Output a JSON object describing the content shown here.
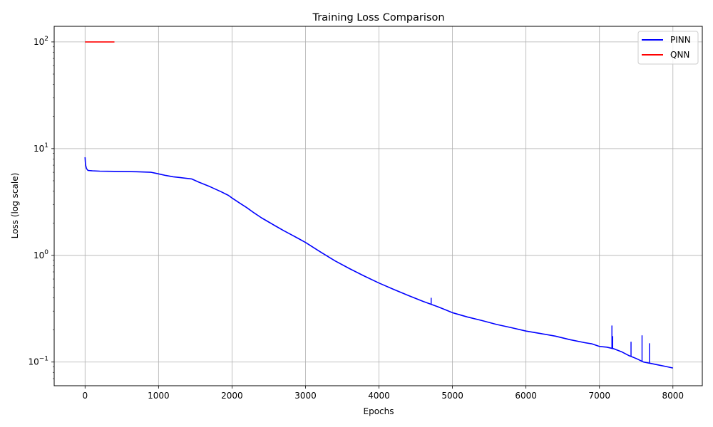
{
  "chart_data": {
    "type": "line",
    "title": "Training Loss Comparison",
    "xlabel": "Epochs",
    "ylabel": "Loss (log scale)",
    "xlim": [
      -420,
      8400
    ],
    "ylim": [
      0.06,
      140
    ],
    "yscale": "log",
    "grid": true,
    "legend_position": "top-right",
    "xticks": [
      0,
      1000,
      2000,
      3000,
      4000,
      5000,
      6000,
      7000,
      8000
    ],
    "yticks": [
      {
        "value": 0.1,
        "base": "10",
        "exp": "−1"
      },
      {
        "value": 1,
        "base": "10",
        "exp": "0"
      },
      {
        "value": 10,
        "base": "10",
        "exp": "1"
      },
      {
        "value": 100,
        "base": "10",
        "exp": "2"
      }
    ],
    "series": [
      {
        "name": "PINN",
        "color": "#0000ff",
        "x": [
          0,
          5,
          10,
          20,
          40,
          100,
          200,
          400,
          700,
          900,
          950,
          1000,
          1100,
          1200,
          1300,
          1450,
          1550,
          1700,
          1850,
          1950,
          2000,
          2100,
          2200,
          2300,
          2400,
          2500,
          2600,
          2700,
          2800,
          2900,
          3000,
          3200,
          3400,
          3600,
          3800,
          4000,
          4200,
          4400,
          4600,
          4700,
          4800,
          4900,
          5000,
          5200,
          5400,
          5600,
          5800,
          6000,
          6200,
          6400,
          6600,
          6800,
          6900,
          7000,
          7100,
          7200,
          7300,
          7400,
          7500,
          7600,
          7700,
          7800,
          7900,
          8000
        ],
        "y": [
          8.3,
          7.3,
          6.9,
          6.5,
          6.25,
          6.2,
          6.15,
          6.12,
          6.08,
          6.0,
          5.9,
          5.8,
          5.6,
          5.45,
          5.35,
          5.2,
          4.85,
          4.4,
          3.95,
          3.65,
          3.45,
          3.1,
          2.8,
          2.5,
          2.25,
          2.05,
          1.87,
          1.71,
          1.57,
          1.44,
          1.32,
          1.08,
          0.89,
          0.75,
          0.64,
          0.55,
          0.48,
          0.42,
          0.37,
          0.35,
          0.33,
          0.31,
          0.29,
          0.265,
          0.245,
          0.225,
          0.21,
          0.195,
          0.185,
          0.175,
          0.162,
          0.152,
          0.148,
          0.14,
          0.138,
          0.133,
          0.125,
          0.115,
          0.108,
          0.1,
          0.097,
          0.094,
          0.091,
          0.088
        ],
        "spikes": [
          {
            "x": 4710,
            "y": 0.4
          },
          {
            "x": 7170,
            "y": 0.22
          },
          {
            "x": 7180,
            "y": 0.175
          },
          {
            "x": 7430,
            "y": 0.155
          },
          {
            "x": 7580,
            "y": 0.178
          },
          {
            "x": 7680,
            "y": 0.15
          }
        ]
      },
      {
        "name": "QNN",
        "color": "#ff0000",
        "x": [
          0,
          400
        ],
        "y": [
          100,
          100
        ]
      }
    ]
  }
}
